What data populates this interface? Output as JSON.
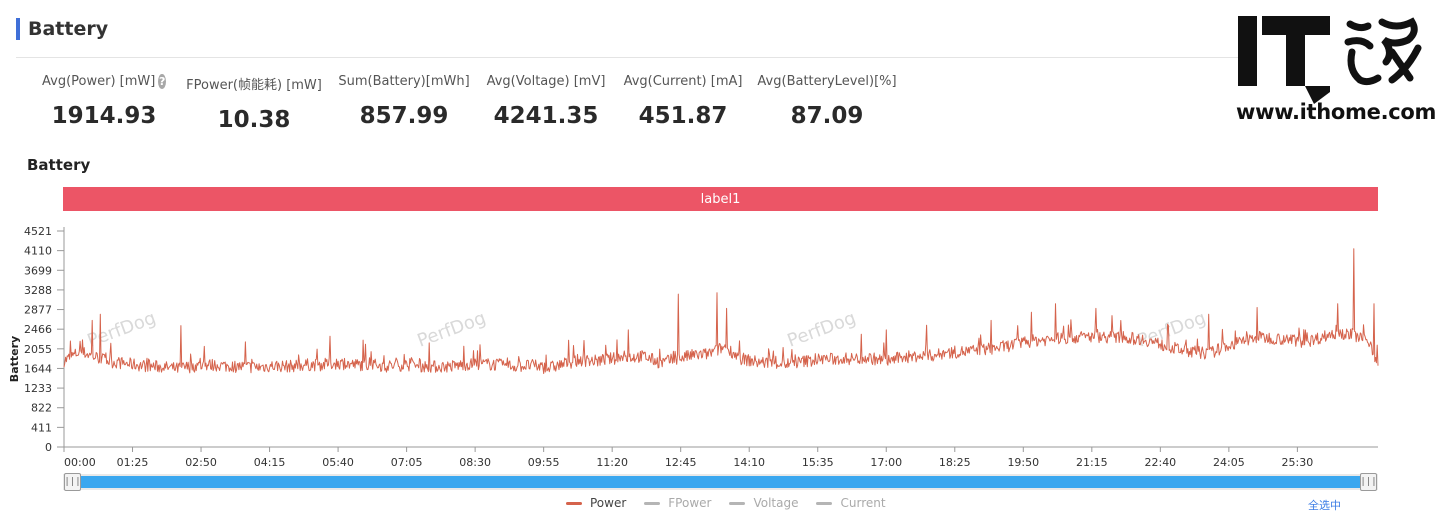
{
  "section": {
    "title": "Battery"
  },
  "stats": [
    {
      "label": "Avg(Power) [mW]",
      "value": "1914.93",
      "help": "?"
    },
    {
      "label": "FPower(帧能耗) [mW]",
      "value": "10.38"
    },
    {
      "label": "Sum(Battery)[mWh]",
      "value": "857.99"
    },
    {
      "label": "Avg(Voltage) [mV]",
      "value": "4241.35"
    },
    {
      "label": "Avg(Current) [mA]",
      "value": "451.87"
    },
    {
      "label": "Avg(BatteryLevel)[%]",
      "value": "87.09"
    }
  ],
  "logo": {
    "text": "IT之家",
    "url": "www.ithome.com"
  },
  "chart_title": "Battery",
  "label_band": {
    "text": "label1",
    "color": "#ec5566"
  },
  "chart_data": {
    "type": "line",
    "ylabel": "Battery",
    "ylim": [
      0,
      4521
    ],
    "yticks": [
      "0",
      "411",
      "822",
      "1233",
      "1644",
      "2055",
      "2466",
      "2877",
      "3288",
      "3699",
      "4110",
      "4521"
    ],
    "xticks": [
      "00:00",
      "01:25",
      "02:50",
      "04:15",
      "05:40",
      "07:05",
      "08:30",
      "09:55",
      "11:20",
      "12:45",
      "14:10",
      "15:35",
      "17:00",
      "18:25",
      "19:50",
      "21:15",
      "22:40",
      "24:05",
      "25:30"
    ],
    "x_unit": "seconds",
    "x_tick_step": 85,
    "x_max": 1630,
    "watermark": "PerfDog",
    "series": [
      {
        "name": "Power",
        "color": "#d5634c",
        "keypoints": [
          [
            0,
            1800
          ],
          [
            20,
            2000
          ],
          [
            40,
            1880
          ],
          [
            60,
            1780
          ],
          [
            80,
            1740
          ],
          [
            100,
            1700
          ],
          [
            120,
            1680
          ],
          [
            140,
            1640
          ],
          [
            160,
            1690
          ],
          [
            180,
            1720
          ],
          [
            200,
            1700
          ],
          [
            220,
            1680
          ],
          [
            240,
            1670
          ],
          [
            260,
            1700
          ],
          [
            280,
            1690
          ],
          [
            300,
            1720
          ],
          [
            320,
            1720
          ],
          [
            340,
            1760
          ],
          [
            360,
            1720
          ],
          [
            380,
            1730
          ],
          [
            400,
            1690
          ],
          [
            420,
            1720
          ],
          [
            440,
            1700
          ],
          [
            460,
            1680
          ],
          [
            480,
            1690
          ],
          [
            500,
            1730
          ],
          [
            520,
            1740
          ],
          [
            540,
            1720
          ],
          [
            560,
            1690
          ],
          [
            580,
            1710
          ],
          [
            600,
            1650
          ],
          [
            620,
            1740
          ],
          [
            640,
            1820
          ],
          [
            660,
            1800
          ],
          [
            680,
            1850
          ],
          [
            700,
            1880
          ],
          [
            720,
            1900
          ],
          [
            740,
            1760
          ],
          [
            760,
            1850
          ],
          [
            780,
            1920
          ],
          [
            800,
            1950
          ],
          [
            820,
            2100
          ],
          [
            840,
            1850
          ],
          [
            860,
            1780
          ],
          [
            880,
            1760
          ],
          [
            900,
            1740
          ],
          [
            920,
            1800
          ],
          [
            940,
            1840
          ],
          [
            960,
            1840
          ],
          [
            980,
            1850
          ],
          [
            1000,
            1860
          ],
          [
            1020,
            1800
          ],
          [
            1040,
            1880
          ],
          [
            1060,
            1900
          ],
          [
            1080,
            1920
          ],
          [
            1100,
            1980
          ],
          [
            1120,
            2000
          ],
          [
            1140,
            2040
          ],
          [
            1160,
            2080
          ],
          [
            1180,
            2150
          ],
          [
            1200,
            2220
          ],
          [
            1220,
            2250
          ],
          [
            1240,
            2280
          ],
          [
            1260,
            2300
          ],
          [
            1280,
            2320
          ],
          [
            1300,
            2300
          ],
          [
            1320,
            2280
          ],
          [
            1340,
            2250
          ],
          [
            1360,
            2150
          ],
          [
            1380,
            2050
          ],
          [
            1400,
            2000
          ],
          [
            1420,
            1950
          ],
          [
            1440,
            2100
          ],
          [
            1460,
            2200
          ],
          [
            1480,
            2300
          ],
          [
            1500,
            2280
          ],
          [
            1520,
            2250
          ],
          [
            1540,
            2200
          ],
          [
            1560,
            2300
          ],
          [
            1580,
            2400
          ],
          [
            1600,
            2350
          ],
          [
            1620,
            2200
          ],
          [
            1630,
            1700
          ]
        ],
        "spikes": [
          [
            35,
            2650
          ],
          [
            45,
            2780
          ],
          [
            145,
            2540
          ],
          [
            225,
            2200
          ],
          [
            330,
            2320
          ],
          [
            700,
            2450
          ],
          [
            762,
            3200
          ],
          [
            810,
            3230
          ],
          [
            822,
            2900
          ],
          [
            1020,
            2450
          ],
          [
            1070,
            2550
          ],
          [
            1150,
            2650
          ],
          [
            1200,
            2820
          ],
          [
            1230,
            3000
          ],
          [
            1280,
            2900
          ],
          [
            1300,
            2750
          ],
          [
            1420,
            2780
          ],
          [
            1480,
            2920
          ],
          [
            1580,
            3000
          ],
          [
            1600,
            4150
          ],
          [
            1625,
            3000
          ]
        ]
      },
      {
        "name": "FPower",
        "color": "#b5b5b5"
      },
      {
        "name": "Voltage",
        "color": "#b5b5b5"
      },
      {
        "name": "Current",
        "color": "#b5b5b5"
      }
    ]
  },
  "legend": [
    {
      "name": "Power",
      "active": true
    },
    {
      "name": "FPower",
      "active": false
    },
    {
      "name": "Voltage",
      "active": false
    },
    {
      "name": "Current",
      "active": false
    }
  ],
  "slider": {
    "left_handle": "|||",
    "right_handle": "|||"
  },
  "select_all": "全选中"
}
